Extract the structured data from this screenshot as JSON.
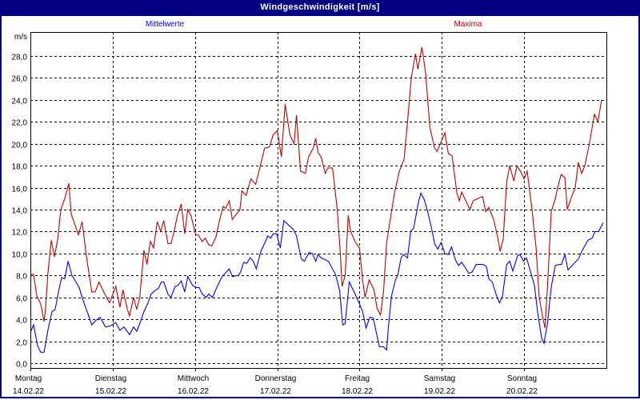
{
  "title": "Windgeschwindigkeit [m/s]",
  "chart_data": {
    "type": "line",
    "title": "Windgeschwindigkeit [m/s]",
    "ylabel": "m/s",
    "xlabel": "",
    "ylim": [
      0,
      30
    ],
    "xunit": "hours since Montag 14.02.22 00:00",
    "xlim": [
      0,
      168
    ],
    "grid": true,
    "yticks": [
      "0,0",
      "2,0",
      "4,0",
      "6,0",
      "8,0",
      "10,0",
      "12,0",
      "14,0",
      "16,0",
      "18,0",
      "20,0",
      "22,0",
      "24,0",
      "26,0",
      "28,0"
    ],
    "ytick_values": [
      0,
      2,
      4,
      6,
      8,
      10,
      12,
      14,
      16,
      18,
      20,
      22,
      24,
      26,
      28
    ],
    "days": [
      {
        "name": "Montag",
        "date": "14.02.22"
      },
      {
        "name": "Dienstag",
        "date": "15.02.22"
      },
      {
        "name": "Mittwoch",
        "date": "16.02.22"
      },
      {
        "name": "Donnerstag",
        "date": "17.02.22"
      },
      {
        "name": "Freitag",
        "date": "18.02.22"
      },
      {
        "name": "Samstag",
        "date": "19.02.22"
      },
      {
        "name": "Sonntag",
        "date": "20.02.22"
      }
    ],
    "series": [
      {
        "name": "Mittelwerte",
        "color": "#0000ff",
        "legend": "top-left",
        "points": [
          [
            0,
            2.8
          ],
          [
            0.9,
            3.5
          ],
          [
            2.1,
            1.6
          ],
          [
            3,
            1
          ],
          [
            4,
            1
          ],
          [
            5.1,
            3
          ],
          [
            6.3,
            4.7
          ],
          [
            7.2,
            4.9
          ],
          [
            8.2,
            6.5
          ],
          [
            9.1,
            7.8
          ],
          [
            10,
            7.7
          ],
          [
            11,
            9.3
          ],
          [
            12.1,
            8
          ],
          [
            13.3,
            7.4
          ],
          [
            14.2,
            6.9
          ],
          [
            15.6,
            5.5
          ],
          [
            17,
            4.3
          ],
          [
            17.9,
            3.5
          ],
          [
            19.1,
            3.9
          ],
          [
            20.3,
            4.2
          ],
          [
            21.9,
            3.3
          ],
          [
            23.3,
            3.4
          ],
          [
            24.9,
            3.7
          ],
          [
            26.1,
            3
          ],
          [
            27.3,
            3.3
          ],
          [
            28.9,
            2.6
          ],
          [
            30.1,
            3.3
          ],
          [
            31,
            2.9
          ],
          [
            31.9,
            3.6
          ],
          [
            33.1,
            4.7
          ],
          [
            34.3,
            5.5
          ],
          [
            35.2,
            6.3
          ],
          [
            36.6,
            6.7
          ],
          [
            37.3,
            6.8
          ],
          [
            38.2,
            7.4
          ],
          [
            38.9,
            7.4
          ],
          [
            40.1,
            6.3
          ],
          [
            41,
            6
          ],
          [
            42.2,
            7
          ],
          [
            43.1,
            7.1
          ],
          [
            44,
            7.5
          ],
          [
            45,
            6.5
          ],
          [
            45.9,
            7.9
          ],
          [
            47.3,
            7.1
          ],
          [
            48.2,
            6.9
          ],
          [
            49.2,
            6.9
          ],
          [
            50.1,
            6.3
          ],
          [
            51.3,
            6
          ],
          [
            52,
            6.3
          ],
          [
            53.1,
            6
          ],
          [
            54.5,
            7
          ],
          [
            55.9,
            7.9
          ],
          [
            57.1,
            8.3
          ],
          [
            58,
            8.6
          ],
          [
            58.9,
            7.9
          ],
          [
            60.6,
            8
          ],
          [
            61.3,
            8.3
          ],
          [
            62.2,
            9.2
          ],
          [
            63.1,
            9.1
          ],
          [
            64.1,
            9.6
          ],
          [
            65,
            9.3
          ],
          [
            65.9,
            8.6
          ],
          [
            67.1,
            10.1
          ],
          [
            68.7,
            11.2
          ],
          [
            69.2,
            11.6
          ],
          [
            70.1,
            11.4
          ],
          [
            70.8,
            11.8
          ],
          [
            71.8,
            11.8
          ],
          [
            72.9,
            10.5
          ],
          [
            73.9,
            13
          ],
          [
            75.3,
            12.6
          ],
          [
            76.7,
            12.2
          ],
          [
            77.6,
            11.6
          ],
          [
            79,
            9.5
          ],
          [
            79.9,
            9.3
          ],
          [
            81.3,
            10.1
          ],
          [
            82.2,
            10
          ],
          [
            83.2,
            9.3
          ],
          [
            83.9,
            9.9
          ],
          [
            84.8,
            9.6
          ],
          [
            86.9,
            9.3
          ],
          [
            89,
            8.1
          ],
          [
            90.2,
            6.6
          ],
          [
            91.1,
            3.5
          ],
          [
            91.8,
            3.6
          ],
          [
            93,
            7.4
          ],
          [
            94.4,
            6.5
          ],
          [
            96,
            5.4
          ],
          [
            96.9,
            4.7
          ],
          [
            97.9,
            3.2
          ],
          [
            99,
            4.2
          ],
          [
            100,
            4.1
          ],
          [
            100.9,
            2.8
          ],
          [
            101.8,
            1.5
          ],
          [
            103,
            1.5
          ],
          [
            103.9,
            1.2
          ],
          [
            104.4,
            3.2
          ],
          [
            105.3,
            6.1
          ],
          [
            106.5,
            7.6
          ],
          [
            107.2,
            8.1
          ],
          [
            108.1,
            9.6
          ],
          [
            108.8,
            9.9
          ],
          [
            110,
            9.6
          ],
          [
            110.9,
            12
          ],
          [
            111.8,
            12.3
          ],
          [
            113.2,
            14.7
          ],
          [
            113.9,
            15.5
          ],
          [
            114.9,
            14.9
          ],
          [
            115.8,
            13.9
          ],
          [
            117,
            12.3
          ],
          [
            117.9,
            10.9
          ],
          [
            118.8,
            10.4
          ],
          [
            119.8,
            11
          ],
          [
            120.9,
            10
          ],
          [
            121.9,
            9.9
          ],
          [
            122.8,
            10.6
          ],
          [
            124,
            9.4
          ],
          [
            124.9,
            8.9
          ],
          [
            125.8,
            9.2
          ],
          [
            127.9,
            8.2
          ],
          [
            128.8,
            8.3
          ],
          [
            130,
            9
          ],
          [
            132.1,
            9
          ],
          [
            133,
            8.8
          ],
          [
            133.7,
            7.7
          ],
          [
            134.7,
            7.4
          ],
          [
            135.8,
            6.3
          ],
          [
            136.8,
            5.5
          ],
          [
            137.7,
            6.1
          ],
          [
            138.9,
            9
          ],
          [
            139.8,
            9.3
          ],
          [
            140.7,
            8.4
          ],
          [
            142.1,
            9.8
          ],
          [
            142.8,
            9.9
          ],
          [
            143.8,
            9.3
          ],
          [
            144.7,
            9.6
          ],
          [
            146.1,
            8.1
          ],
          [
            147,
            7.1
          ],
          [
            148,
            4.5
          ],
          [
            149.1,
            2.3
          ],
          [
            149.8,
            1.8
          ],
          [
            150.8,
            3.6
          ],
          [
            151.9,
            6.9
          ],
          [
            153.1,
            8.9
          ],
          [
            154.2,
            9
          ],
          [
            154.9,
            9
          ],
          [
            155.9,
            9.9
          ],
          [
            156.8,
            8.5
          ],
          [
            159.8,
            9.5
          ],
          [
            161,
            10.3
          ],
          [
            162.6,
            11.2
          ],
          [
            163.8,
            11.4
          ],
          [
            164.7,
            12
          ],
          [
            165.7,
            12
          ],
          [
            167.1,
            12.8
          ]
        ]
      },
      {
        "name": "Maxima",
        "color": "#c00000",
        "legend": "top-right",
        "points": [
          [
            0,
            8.1
          ],
          [
            0.9,
            8.1
          ],
          [
            1.9,
            6.1
          ],
          [
            3,
            5.4
          ],
          [
            4,
            3.8
          ],
          [
            4.4,
            5
          ],
          [
            5.1,
            8.2
          ],
          [
            6.1,
            11.2
          ],
          [
            7,
            9.7
          ],
          [
            7.9,
            11.2
          ],
          [
            8.9,
            14
          ],
          [
            10,
            15
          ],
          [
            11.2,
            16.4
          ],
          [
            11.9,
            13.6
          ],
          [
            14,
            11.7
          ],
          [
            15.1,
            12.9
          ],
          [
            16.3,
            9.8
          ],
          [
            17.9,
            6.5
          ],
          [
            18.9,
            6.5
          ],
          [
            20,
            7.4
          ],
          [
            21.7,
            6.3
          ],
          [
            23.1,
            5.5
          ],
          [
            24.9,
            7
          ],
          [
            26.1,
            5.1
          ],
          [
            27,
            6.7
          ],
          [
            28.2,
            5
          ],
          [
            28.9,
            4.3
          ],
          [
            30.1,
            6
          ],
          [
            31,
            4.9
          ],
          [
            31.9,
            6
          ],
          [
            33.1,
            10.3
          ],
          [
            34,
            9
          ],
          [
            35,
            11.1
          ],
          [
            35.9,
            10.5
          ],
          [
            37,
            12.9
          ],
          [
            38,
            12
          ],
          [
            38.9,
            13
          ],
          [
            40.1,
            10.9
          ],
          [
            41,
            10.9
          ],
          [
            41.9,
            12
          ],
          [
            42.9,
            13.5
          ],
          [
            44,
            14.5
          ],
          [
            45,
            11.8
          ],
          [
            45.9,
            14
          ],
          [
            46.8,
            13.5
          ],
          [
            48.2,
            11.7
          ],
          [
            48.9,
            11.7
          ],
          [
            50.1,
            11.1
          ],
          [
            51,
            11.4
          ],
          [
            52,
            10.8
          ],
          [
            52.9,
            10.7
          ],
          [
            54.1,
            11.5
          ],
          [
            55,
            12.8
          ],
          [
            56.2,
            14.3
          ],
          [
            56.9,
            14.1
          ],
          [
            58,
            14.8
          ],
          [
            58.9,
            13.1
          ],
          [
            61.1,
            14
          ],
          [
            61.7,
            15.7
          ],
          [
            62.9,
            15.3
          ],
          [
            64.3,
            16.8
          ],
          [
            65.7,
            16.3
          ],
          [
            66.9,
            17.8
          ],
          [
            68.3,
            19.6
          ],
          [
            69.7,
            19.7
          ],
          [
            70.8,
            20.8
          ],
          [
            72,
            21.2
          ],
          [
            73.2,
            18.8
          ],
          [
            74.3,
            23.6
          ],
          [
            75.7,
            20.8
          ],
          [
            76.9,
            20
          ],
          [
            77.6,
            22.6
          ],
          [
            78.8,
            17.5
          ],
          [
            80.2,
            17.3
          ],
          [
            81.1,
            18.8
          ],
          [
            82.5,
            19.6
          ],
          [
            83.2,
            20.5
          ],
          [
            83.9,
            19.2
          ],
          [
            84.8,
            18.8
          ],
          [
            86,
            17.3
          ],
          [
            86.7,
            17.8
          ],
          [
            88.1,
            17.8
          ],
          [
            89.5,
            14
          ],
          [
            90.4,
            10
          ],
          [
            90.9,
            7
          ],
          [
            91.8,
            8
          ],
          [
            92.7,
            13.5
          ],
          [
            93.4,
            12
          ],
          [
            94.8,
            11
          ],
          [
            96,
            10.5
          ],
          [
            96.9,
            7.5
          ],
          [
            97.6,
            6
          ],
          [
            98.8,
            7.6
          ],
          [
            100.2,
            6.7
          ],
          [
            101.1,
            5
          ],
          [
            102.1,
            4.4
          ],
          [
            103,
            6.5
          ],
          [
            103.9,
            11
          ],
          [
            104.9,
            13
          ],
          [
            106.2,
            15.5
          ],
          [
            107.6,
            17.5
          ],
          [
            109,
            18.6
          ],
          [
            110,
            22
          ],
          [
            111.1,
            26
          ],
          [
            112.3,
            28.2
          ],
          [
            113,
            26.8
          ],
          [
            114.2,
            28.8
          ],
          [
            115.3,
            26.4
          ],
          [
            116.5,
            21.5
          ],
          [
            117.9,
            19.6
          ],
          [
            118.6,
            19.3
          ],
          [
            120.2,
            20.5
          ],
          [
            120.9,
            21
          ],
          [
            121.9,
            19.1
          ],
          [
            123,
            18.9
          ],
          [
            124.4,
            15.5
          ],
          [
            125.1,
            14.8
          ],
          [
            125.8,
            15.6
          ],
          [
            128.2,
            14
          ],
          [
            129.1,
            14.8
          ],
          [
            130.5,
            15
          ],
          [
            131.9,
            15.2
          ],
          [
            132.8,
            13.8
          ],
          [
            133.7,
            14.2
          ],
          [
            135.1,
            13.1
          ],
          [
            136.3,
            11.5
          ],
          [
            137,
            10.2
          ],
          [
            137.9,
            11.3
          ],
          [
            138.9,
            16.5
          ],
          [
            139.8,
            18
          ],
          [
            141,
            16.6
          ],
          [
            141.9,
            18
          ],
          [
            143.1,
            17.4
          ],
          [
            144,
            16.8
          ],
          [
            144.9,
            17.5
          ],
          [
            146.3,
            14
          ],
          [
            147.5,
            10.5
          ],
          [
            148.4,
            6
          ],
          [
            149.4,
            4.2
          ],
          [
            150.1,
            3.2
          ],
          [
            151,
            8
          ],
          [
            151.9,
            13.8
          ],
          [
            153.1,
            15
          ],
          [
            153.8,
            16
          ],
          [
            154.8,
            17.2
          ],
          [
            155.9,
            16.9
          ],
          [
            156.6,
            14
          ],
          [
            158,
            15.3
          ],
          [
            158.9,
            16
          ],
          [
            159.8,
            18.3
          ],
          [
            160.8,
            17.3
          ],
          [
            161.7,
            18
          ],
          [
            163.1,
            20.1
          ],
          [
            164.5,
            22.7
          ],
          [
            165.5,
            22
          ],
          [
            166.6,
            24
          ]
        ]
      }
    ]
  }
}
